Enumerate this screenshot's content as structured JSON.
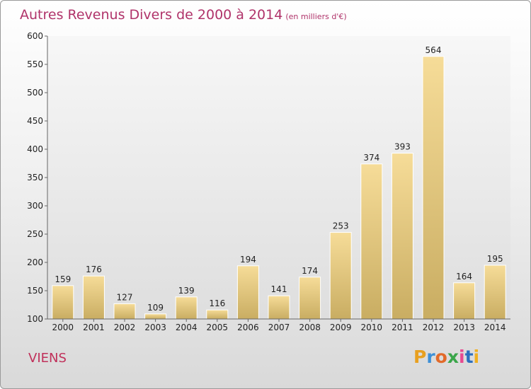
{
  "header": {
    "title": "Autres Revenus Divers de 2000 à 2014",
    "subtitle": "(en milliers d'€)"
  },
  "footer": {
    "commune": "VIENS",
    "logo_letters": [
      "P",
      "r",
      "o",
      "x",
      "i",
      "t",
      "i"
    ],
    "logo_colors": [
      "#e8a020",
      "#3d8fd6",
      "#e26a2a",
      "#3aa64a",
      "#e84a90",
      "#2c6fbe",
      "#f0b020"
    ]
  },
  "chart_data": {
    "type": "bar",
    "categories": [
      "2000",
      "2001",
      "2002",
      "2003",
      "2004",
      "2005",
      "2006",
      "2007",
      "2008",
      "2009",
      "2010",
      "2011",
      "2012",
      "2013",
      "2014"
    ],
    "values": [
      159,
      176,
      127,
      109,
      139,
      116,
      194,
      141,
      174,
      253,
      374,
      393,
      564,
      164,
      195
    ],
    "title": "Autres Revenus Divers de 2000 à 2014",
    "xlabel": "",
    "ylabel": "",
    "ylim": [
      100,
      600
    ],
    "yticks": [
      100,
      150,
      200,
      250,
      300,
      350,
      400,
      450,
      500,
      550,
      600
    ],
    "grid": false,
    "bar_color": "#e8c877"
  }
}
